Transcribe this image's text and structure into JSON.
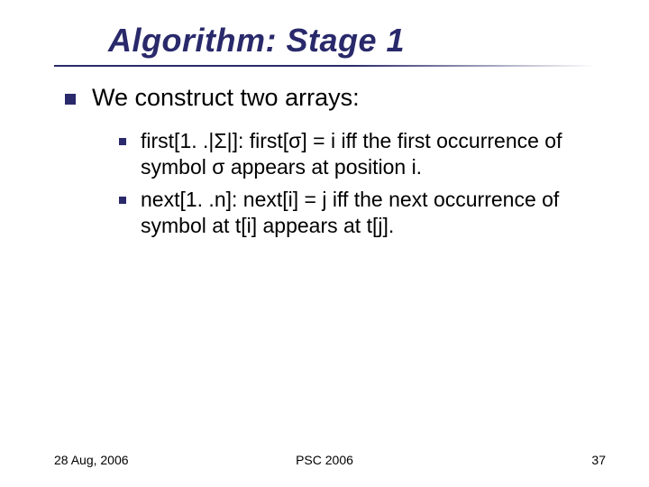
{
  "colors": {
    "title": "#29296b",
    "bullet": "#29296b",
    "text": "#000000",
    "background": "#ffffff"
  },
  "typography": {
    "title_fontsize": 36,
    "title_weight": "bold",
    "title_style": "italic",
    "lvl1_fontsize": 27,
    "lvl2_fontsize": 23,
    "footer_fontsize": 14,
    "font_family": "Verdana, Arial, sans-serif"
  },
  "title": "Algorithm: Stage 1",
  "lvl1_text": "We construct two arrays:",
  "items": [
    "first[1. .|Σ|]: first[σ] = i iff the first occurrence of symbol σ appears at position i.",
    "next[1. .n]: next[i] = j iff the next occurrence of symbol at t[i] appears at t[j]."
  ],
  "footer": {
    "date": "28 Aug, 2006",
    "center": "PSC 2006",
    "page": "37"
  }
}
